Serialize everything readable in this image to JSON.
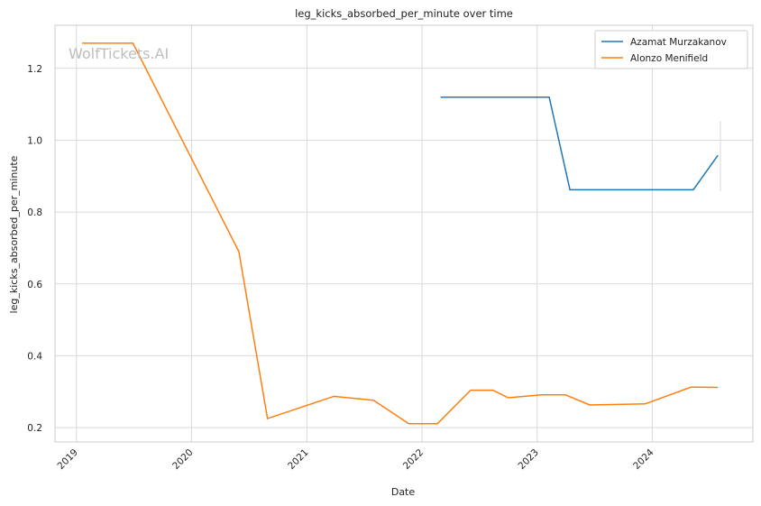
{
  "watermark": "WolfTickets.AI",
  "chart_data": {
    "type": "line",
    "title": "leg_kicks_absorbed_per_minute over time",
    "xlabel": "Date",
    "ylabel": "leg_kicks_absorbed_per_minute",
    "xlim": [
      "2018-10-25",
      "2024-11-15"
    ],
    "ylim": [
      0.16,
      1.32
    ],
    "x_ticks": [
      "2019",
      "2020",
      "2021",
      "2022",
      "2023",
      "2024"
    ],
    "y_ticks": [
      "0.2",
      "0.4",
      "0.6",
      "0.8",
      "1.0",
      "1.2"
    ],
    "grid": true,
    "legend_position": "top-right",
    "series": [
      {
        "name": "Azamat Murzakanov",
        "color": "#1f77b4",
        "points": [
          [
            "2022-03-01",
            1.12
          ],
          [
            "2023-02-08",
            1.12
          ],
          [
            "2023-04-15",
            0.862
          ],
          [
            "2024-05-10",
            0.862
          ],
          [
            "2024-07-27",
            0.958
          ]
        ]
      },
      {
        "name": "Alonzo Menifield",
        "color": "#ff7f0e",
        "points": [
          [
            "2019-01-19",
            1.27
          ],
          [
            "2019-06-29",
            1.27
          ],
          [
            "2020-05-30",
            0.69
          ],
          [
            "2020-08-29",
            0.225
          ],
          [
            "2021-03-27",
            0.287
          ],
          [
            "2021-07-31",
            0.276
          ],
          [
            "2021-11-20",
            0.211
          ],
          [
            "2022-02-19",
            0.211
          ],
          [
            "2022-06-04",
            0.304
          ],
          [
            "2022-08-13",
            0.304
          ],
          [
            "2022-10-01",
            0.283
          ],
          [
            "2023-01-14",
            0.291
          ],
          [
            "2023-04-01",
            0.291
          ],
          [
            "2023-06-17",
            0.263
          ],
          [
            "2023-12-09",
            0.266
          ],
          [
            "2024-05-04",
            0.313
          ],
          [
            "2024-07-27",
            0.312
          ]
        ]
      }
    ]
  }
}
